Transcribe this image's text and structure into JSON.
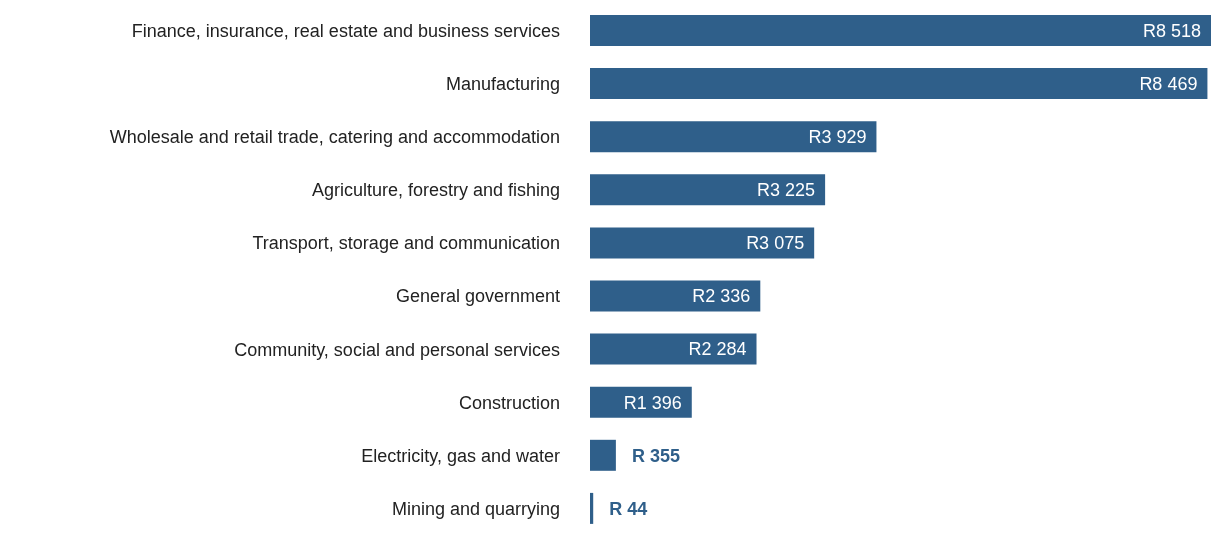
{
  "chart_data": {
    "type": "bar",
    "orientation": "horizontal",
    "categories": [
      "Finance, insurance, real estate and business services",
      "Manufacturing",
      "Wholesale and retail trade, catering and accommodation",
      "Agriculture, forestry and fishing",
      "Transport, storage and communication",
      "General government",
      "Community, social and personal services",
      "Construction",
      "Electricity, gas and water",
      "Mining and quarrying"
    ],
    "values": [
      8518,
      8469,
      3929,
      3225,
      3075,
      2336,
      2284,
      1396,
      355,
      44
    ],
    "value_labels": [
      "R8 518",
      "R8 469",
      "R3 929",
      "R3 225",
      "R3 075",
      "R2 336",
      "R2 284",
      "R1 396",
      "R 355",
      "R 44"
    ],
    "color": "#2f5f8a"
  }
}
